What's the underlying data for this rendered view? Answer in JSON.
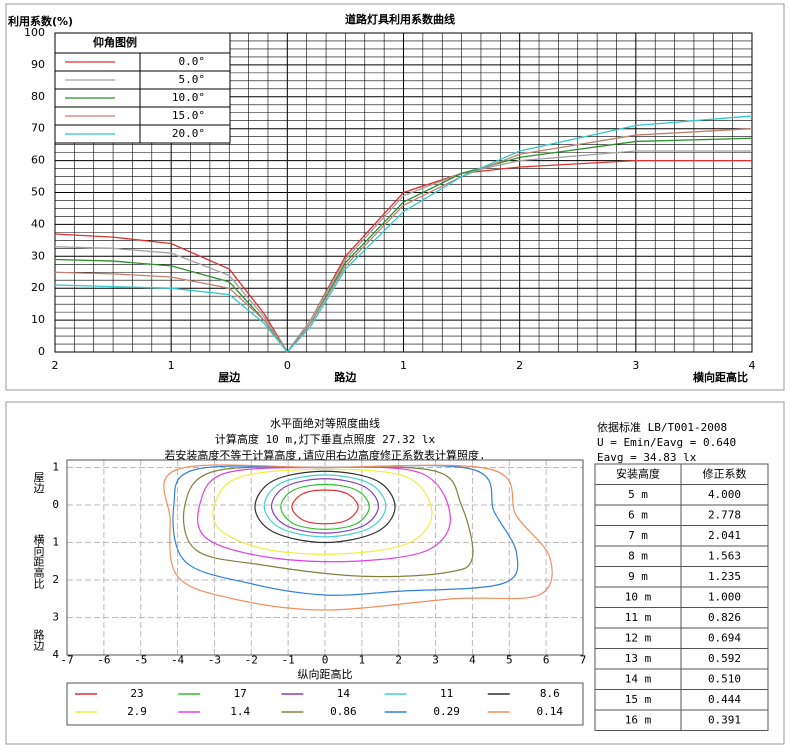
{
  "chart_data": [
    {
      "type": "line",
      "title": "道路灯具利用系数曲线",
      "ylabel": "利用系数(%)",
      "xlabel": "横向距高比",
      "x_side_labels": [
        "屋边",
        "路边"
      ],
      "legend_title": "仰角图例",
      "legend": "upper left",
      "grid": true,
      "x": [
        -2,
        -1.5,
        -1,
        -0.5,
        -0.2,
        0,
        0.2,
        0.5,
        1,
        1.5,
        2,
        3,
        4
      ],
      "xlim": [
        -2,
        4
      ],
      "xticks": [
        {
          "value": -2,
          "label": "2"
        },
        {
          "value": -1,
          "label": "1"
        },
        0,
        1,
        2,
        3,
        4
      ],
      "ylim": [
        0,
        100
      ],
      "yticks": [
        0,
        10,
        20,
        30,
        40,
        50,
        60,
        70,
        80,
        90,
        100
      ],
      "series": [
        {
          "name": "0.0°",
          "color": "#e03030",
          "values": [
            37,
            36,
            34,
            26,
            12,
            0,
            10,
            30,
            50,
            56,
            58,
            60,
            60
          ]
        },
        {
          "name": "5.0°",
          "color": "#a0a0a0",
          "values": [
            33,
            32.5,
            31,
            24,
            11,
            0,
            10,
            29,
            49,
            56,
            60,
            63,
            63
          ]
        },
        {
          "name": "10.0°",
          "color": "#2f8f2f",
          "values": [
            29,
            28.5,
            27,
            22,
            10,
            0,
            9,
            28,
            47,
            56,
            61,
            66,
            67
          ]
        },
        {
          "name": "15.0°",
          "color": "#c08070",
          "values": [
            25,
            24.5,
            23.5,
            20,
            10,
            0,
            9,
            27,
            46,
            55,
            62,
            68,
            70
          ]
        },
        {
          "name": "20.0°",
          "color": "#30c8c8",
          "values": [
            21,
            20.5,
            20,
            18,
            9,
            0,
            8,
            26,
            44,
            55,
            63,
            71,
            74
          ]
        }
      ]
    },
    {
      "type": "contour",
      "title": "水平面绝对等照度曲线",
      "subtitle": "计算高度 10 m,灯下垂直点照度  27.32 lx",
      "note": "若安装高度不等于计算高度,请应用右边高度修正系数表计算照度.",
      "xlabel": "纵向距高比",
      "ylabel": "横向距高比",
      "y_side_labels": [
        "屋边",
        "路边"
      ],
      "grid": true,
      "xlim": [
        -7,
        7
      ],
      "xticks": [
        -7,
        -6,
        -5,
        -4,
        -3,
        -2,
        -1,
        0,
        1,
        2,
        3,
        4,
        5,
        6,
        7
      ],
      "ylim": [
        4,
        -1.2
      ],
      "yticks": [
        {
          "value": -1,
          "label": "1"
        },
        0,
        1,
        2,
        3,
        4
      ],
      "series": [
        {
          "name": "23",
          "color": "#e03030",
          "x": [
            0,
            0.6,
            0.9,
            0.6,
            0,
            -0.6,
            -0.9,
            -0.6
          ],
          "y": [
            -0.4,
            -0.3,
            0.05,
            0.4,
            0.5,
            0.4,
            0.05,
            -0.3
          ]
        },
        {
          "name": "17",
          "color": "#30c030",
          "x": [
            0,
            0.85,
            1.2,
            0.85,
            0,
            -0.85,
            -1.2,
            -0.85
          ],
          "y": [
            -0.55,
            -0.4,
            0.05,
            0.5,
            0.65,
            0.5,
            0.05,
            -0.4
          ]
        },
        {
          "name": "14",
          "color": "#8040c0",
          "x": [
            0,
            1.05,
            1.45,
            1.05,
            0,
            -1.05,
            -1.45,
            -1.05
          ],
          "y": [
            -0.7,
            -0.5,
            0.03,
            0.55,
            0.75,
            0.55,
            0.03,
            -0.5
          ]
        },
        {
          "name": "11",
          "color": "#40d0d0",
          "x": [
            0,
            1.2,
            1.65,
            1.2,
            0,
            -1.2,
            -1.65,
            -1.2
          ],
          "y": [
            -0.8,
            -0.58,
            0.03,
            0.62,
            0.85,
            0.62,
            0.03,
            -0.58
          ]
        },
        {
          "name": "8.6",
          "color": "#303030",
          "x": [
            0,
            1.4,
            1.9,
            1.4,
            0,
            -1.4,
            -1.9,
            -1.4
          ],
          "y": [
            -0.9,
            -0.65,
            0.05,
            0.72,
            1.0,
            0.72,
            0.05,
            -0.65
          ]
        },
        {
          "name": "2.9",
          "color": "#f0f040",
          "x": [
            0,
            2.2,
            2.9,
            2.3,
            0.5,
            -1.5,
            -2.8,
            -3.0,
            -2.3
          ],
          "y": [
            -0.95,
            -0.75,
            0.2,
            1.0,
            1.3,
            1.2,
            0.7,
            0.0,
            -0.75
          ]
        },
        {
          "name": "1.4",
          "color": "#e040e0",
          "x": [
            0,
            2.6,
            3.4,
            2.8,
            0.8,
            -1.5,
            -3.2,
            -3.4,
            -2.7
          ],
          "y": [
            -1.0,
            -0.85,
            0.3,
            1.2,
            1.5,
            1.4,
            0.9,
            0.0,
            -0.85
          ]
        },
        {
          "name": "0.86",
          "color": "#808040",
          "x": [
            0,
            3.0,
            3.7,
            4.0,
            3.3,
            1.0,
            -1.7,
            -3.5,
            -3.8,
            -3.0
          ],
          "y": [
            -1.0,
            -0.9,
            0.0,
            1.4,
            1.8,
            1.9,
            1.6,
            1.2,
            0.0,
            -0.9
          ]
        },
        {
          "name": "0.29",
          "color": "#3080e0",
          "x": [
            0,
            4.0,
            4.6,
            5.2,
            4.8,
            2.0,
            0.0,
            -2.0,
            -3.8,
            -4.1,
            -3.5
          ],
          "y": [
            -1.0,
            -0.95,
            0.2,
            1.3,
            2.1,
            2.3,
            2.4,
            2.1,
            1.5,
            0.0,
            -0.95
          ]
        },
        {
          "name": "0.14",
          "color": "#f09060",
          "x": [
            0,
            4.5,
            5.2,
            6.1,
            5.8,
            3.5,
            0.0,
            -2.5,
            -4.0,
            -4.2,
            -4.0
          ],
          "y": [
            -1.0,
            -0.95,
            0.3,
            1.4,
            2.4,
            2.5,
            2.8,
            2.5,
            1.9,
            0.4,
            -0.95
          ]
        }
      ]
    }
  ],
  "standard": [
    "依据标准 LB/T001-2008",
    "U = Emin/Eavg = 0.640",
    "Eavg = 34.83 lx"
  ],
  "correction_table": {
    "header": [
      "安装高度",
      "修正系数"
    ],
    "rows": [
      [
        "5 m",
        "4.000"
      ],
      [
        "6 m",
        "2.778"
      ],
      [
        "7 m",
        "2.041"
      ],
      [
        "8 m",
        "1.563"
      ],
      [
        "9 m",
        "1.235"
      ],
      [
        "10 m",
        "1.000"
      ],
      [
        "11 m",
        "0.826"
      ],
      [
        "12 m",
        "0.694"
      ],
      [
        "13 m",
        "0.592"
      ],
      [
        "14 m",
        "0.510"
      ],
      [
        "15 m",
        "0.444"
      ],
      [
        "16 m",
        "0.391"
      ]
    ]
  }
}
